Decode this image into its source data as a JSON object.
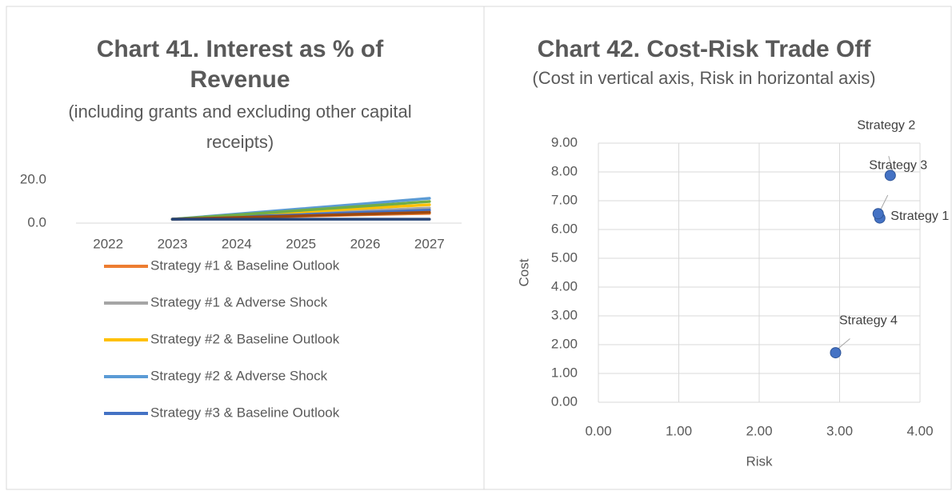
{
  "chart_data": [
    {
      "type": "line",
      "title": "Chart 41. Interest as % of Revenue",
      "subtitle": "(including grants and excluding other capital receipts)",
      "categories": [
        "2022",
        "2023",
        "2024",
        "2025",
        "2026",
        "2027"
      ],
      "ylim": [
        0,
        20
      ],
      "yticks": [
        {
          "value": 0,
          "label": "0.0"
        },
        {
          "value": 20,
          "label": "20.0"
        }
      ],
      "legend": "bottom",
      "series": [
        {
          "name": "Strategy #1 & Baseline Outlook",
          "color": "#ed7d31",
          "values": [
            null,
            1.8,
            2.5,
            3.2,
            3.9,
            4.5
          ]
        },
        {
          "name": "Strategy #1 & Adverse Shock",
          "color": "#a5a5a5",
          "values": [
            null,
            1.8,
            3.1,
            4.4,
            5.7,
            7.0
          ]
        },
        {
          "name": "Strategy #2 & Baseline Outlook",
          "color": "#ffc000",
          "values": [
            null,
            1.8,
            3.5,
            5.2,
            6.9,
            8.5
          ]
        },
        {
          "name": "Strategy #2 & Adverse Shock",
          "color": "#5b9bd5",
          "values": [
            null,
            1.8,
            4.2,
            6.6,
            9.0,
            11.5
          ]
        },
        {
          "name": "Strategy #3 & Baseline Outlook",
          "color": "#4472c4",
          "values": [
            null,
            1.8,
            2.9,
            3.9,
            5.0,
            6.0
          ]
        },
        {
          "color": "#70ad47",
          "values": [
            null,
            1.8,
            3.8,
            5.9,
            7.9,
            10.0
          ]
        },
        {
          "color": "#9e480e",
          "values": [
            null,
            1.8,
            2.6,
            3.4,
            4.2,
            5.0
          ]
        },
        {
          "color": "#264478",
          "values": [
            null,
            1.8,
            1.8,
            1.8,
            1.8,
            1.8
          ]
        }
      ]
    },
    {
      "type": "scatter",
      "title": "Chart 42. Cost-Risk Trade Off",
      "subtitle": "(Cost in vertical axis, Risk in horizontal axis)",
      "x_label": "Risk",
      "y_label": "Cost",
      "color": "#4472c4",
      "grid": true,
      "x": [
        3.5,
        3.63,
        3.48,
        2.95
      ],
      "values": [
        6.4,
        7.88,
        6.55,
        1.72
      ],
      "labels": [
        "Strategy 1",
        "Strategy 2",
        "Strategy 3",
        "Strategy 4"
      ],
      "xlim": [
        0,
        4
      ],
      "xticks": [
        {
          "value": 0,
          "label": "0.00"
        },
        {
          "value": 1,
          "label": "1.00"
        },
        {
          "value": 2,
          "label": "2.00"
        },
        {
          "value": 3,
          "label": "3.00"
        },
        {
          "value": 4,
          "label": "4.00"
        }
      ],
      "ylim": [
        0,
        9
      ],
      "yticks": [
        {
          "value": 0,
          "label": "0.00"
        },
        {
          "value": 1,
          "label": "1.00"
        },
        {
          "value": 2,
          "label": "2.00"
        },
        {
          "value": 3,
          "label": "3.00"
        },
        {
          "value": 4,
          "label": "4.00"
        },
        {
          "value": 5,
          "label": "5.00"
        },
        {
          "value": 6,
          "label": "6.00"
        },
        {
          "value": 7,
          "label": "7.00"
        },
        {
          "value": 8,
          "label": "8.00"
        },
        {
          "value": 9,
          "label": "9.00"
        }
      ]
    }
  ]
}
